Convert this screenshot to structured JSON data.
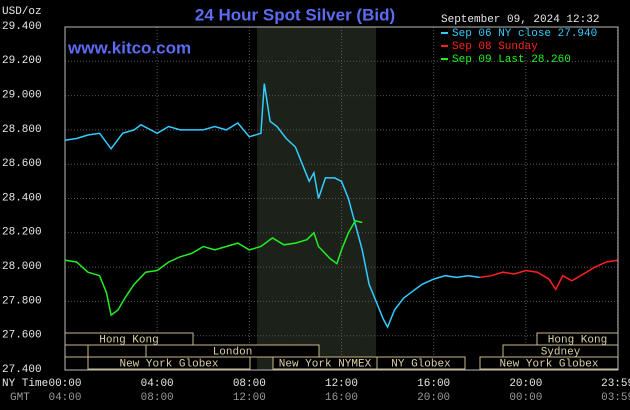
{
  "chart_data": {
    "type": "line",
    "title": "24 Hour Spot Silver (Bid)",
    "website": "www.kitco.com",
    "unit": "USD/oz",
    "timestamp": "September 09, 2024 12:32",
    "x_axis_label": "NY Time",
    "x2_axis_label": "GMT",
    "xlim": [
      0,
      24
    ],
    "ylim": [
      27.4,
      29.4
    ],
    "grid": true,
    "shade": [
      8.33,
      13.5
    ],
    "yticks": [
      {
        "value": 27.4,
        "label": "27.400"
      },
      {
        "value": 27.6,
        "label": "27.600"
      },
      {
        "value": 27.8,
        "label": "27.800"
      },
      {
        "value": 28.0,
        "label": "28.000"
      },
      {
        "value": 28.2,
        "label": "28.200"
      },
      {
        "value": 28.4,
        "label": "28.400"
      },
      {
        "value": 28.6,
        "label": "28.600"
      },
      {
        "value": 28.8,
        "label": "28.800"
      },
      {
        "value": 29.0,
        "label": "29.000"
      },
      {
        "value": 29.2,
        "label": "29.200"
      },
      {
        "value": 29.4,
        "label": "29.400"
      }
    ],
    "xticks": [
      {
        "value": 0,
        "label": "00:00"
      },
      {
        "value": 4,
        "label": "04:00"
      },
      {
        "value": 8,
        "label": "08:00"
      },
      {
        "value": 12,
        "label": "12:00"
      },
      {
        "value": 16,
        "label": "16:00"
      },
      {
        "value": 20,
        "label": "20:00"
      },
      {
        "value": 23.983,
        "label": "23:59"
      }
    ],
    "x2ticks": [
      {
        "value": 0,
        "label": "04:00"
      },
      {
        "value": 4,
        "label": "08:00"
      },
      {
        "value": 8,
        "label": "12:00"
      },
      {
        "value": 12,
        "label": "16:00"
      },
      {
        "value": 16,
        "label": "20:00"
      },
      {
        "value": 20,
        "label": "00:00"
      },
      {
        "value": 23.983,
        "label": "03:59"
      }
    ],
    "sessions": [
      "Hong Kong",
      "London",
      "New York Globex",
      "New York NYMEX",
      "NY Globex",
      "Hong Kong",
      "Sydney",
      "New York Globex"
    ],
    "series": [
      {
        "name": "Sep 06 NY close 27.940",
        "color": "#33ccff",
        "x": [
          0,
          0.5,
          1,
          1.5,
          2,
          2.5,
          3,
          3.3,
          4,
          4.5,
          5,
          6,
          6.5,
          7,
          7.5,
          8,
          8.5,
          8.65,
          8.9,
          9.2,
          9.6,
          10,
          10.3,
          10.6,
          10.8,
          11,
          11.3,
          11.7,
          12,
          12.3,
          12.6,
          12.9,
          13.2,
          13.5,
          13.8,
          14,
          14.3,
          14.7,
          15,
          15.5,
          16,
          16.5,
          17,
          17.5,
          18
        ],
        "values": [
          28.74,
          28.75,
          28.77,
          28.78,
          28.69,
          28.78,
          28.8,
          28.83,
          28.78,
          28.82,
          28.8,
          28.8,
          28.82,
          28.8,
          28.84,
          28.76,
          28.78,
          29.07,
          28.85,
          28.82,
          28.75,
          28.7,
          28.6,
          28.5,
          28.55,
          28.4,
          28.52,
          28.52,
          28.5,
          28.4,
          28.25,
          28.1,
          27.9,
          27.8,
          27.7,
          27.65,
          27.75,
          27.82,
          27.85,
          27.9,
          27.93,
          27.95,
          27.94,
          27.95,
          27.94
        ]
      },
      {
        "name": "Sep 08 Sunday",
        "color": "#ff2020",
        "x": [
          18,
          18.5,
          19,
          19.5,
          20,
          20.5,
          21,
          21.3,
          21.6,
          22,
          22.5,
          23,
          23.5,
          23.983
        ],
        "values": [
          27.94,
          27.95,
          27.97,
          27.96,
          27.98,
          27.97,
          27.93,
          27.87,
          27.95,
          27.92,
          27.96,
          28.0,
          28.03,
          28.04
        ]
      },
      {
        "name": "Sep 09 Last 28.260",
        "color": "#22ee22",
        "x": [
          0,
          0.5,
          1,
          1.5,
          1.8,
          2,
          2.3,
          2.6,
          3,
          3.5,
          4,
          4.5,
          5,
          5.5,
          6,
          6.5,
          7,
          7.5,
          8,
          8.5,
          9,
          9.5,
          10,
          10.5,
          10.8,
          11,
          11.5,
          11.8,
          12,
          12.3,
          12.6,
          12.9
        ],
        "values": [
          28.04,
          28.03,
          27.97,
          27.95,
          27.85,
          27.72,
          27.75,
          27.82,
          27.9,
          27.97,
          27.98,
          28.03,
          28.06,
          28.08,
          28.12,
          28.1,
          28.12,
          28.14,
          28.1,
          28.12,
          28.17,
          28.13,
          28.14,
          28.16,
          28.2,
          28.12,
          28.05,
          28.02,
          28.1,
          28.2,
          28.27,
          28.26
        ]
      }
    ]
  }
}
